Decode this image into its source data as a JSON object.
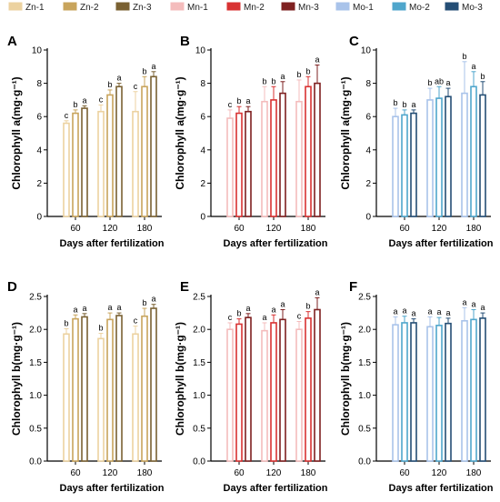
{
  "legend": {
    "items": [
      {
        "label": "Zn-1",
        "color": "#ecd2a0"
      },
      {
        "label": "Zn-2",
        "color": "#c8a45c"
      },
      {
        "label": "Zn-3",
        "color": "#7a6132"
      },
      {
        "label": "Mn-1",
        "color": "#f4bcbc"
      },
      {
        "label": "Mn-2",
        "color": "#d83232"
      },
      {
        "label": "Mn-3",
        "color": "#7e2020"
      },
      {
        "label": "Mo-1",
        "color": "#a9c3ea"
      },
      {
        "label": "Mo-2",
        "color": "#4fa6cc"
      },
      {
        "label": "Mo-3",
        "color": "#244e75"
      }
    ]
  },
  "chart_data": [
    {
      "panel": "A",
      "type": "bar",
      "categories": [
        "60",
        "120",
        "180"
      ],
      "xlabel": "Days after fertilization",
      "ylabel": "Chlorophyll a(mg·g⁻¹)",
      "ylim": [
        0,
        10
      ],
      "yticks": [
        "0",
        "2",
        "4",
        "6",
        "8",
        "10"
      ],
      "series": [
        {
          "name": "Zn-1",
          "color": "#ecd2a0",
          "values": [
            5.6,
            6.3,
            6.3
          ],
          "err": [
            0.15,
            0.4,
            1.2
          ],
          "letters": [
            "c",
            "c",
            "c"
          ]
        },
        {
          "name": "Zn-2",
          "color": "#c8a45c",
          "values": [
            6.2,
            7.3,
            7.8
          ],
          "err": [
            0.2,
            0.3,
            0.6
          ],
          "letters": [
            "b",
            "b",
            "b"
          ]
        },
        {
          "name": "Zn-3",
          "color": "#7a6132",
          "values": [
            6.5,
            7.8,
            8.4
          ],
          "err": [
            0.15,
            0.2,
            0.3
          ],
          "letters": [
            "a",
            "a",
            "a"
          ]
        }
      ]
    },
    {
      "panel": "B",
      "type": "bar",
      "categories": [
        "60",
        "120",
        "180"
      ],
      "xlabel": "Days after fertilization",
      "ylabel": "Chlorophyll a(mg·g⁻¹)",
      "ylim": [
        0,
        10
      ],
      "yticks": [
        "0",
        "2",
        "4",
        "6",
        "8",
        "10"
      ],
      "series": [
        {
          "name": "Mn-1",
          "color": "#f4bcbc",
          "values": [
            5.9,
            6.9,
            6.9
          ],
          "err": [
            0.5,
            0.9,
            1.3
          ],
          "letters": [
            "c",
            "b",
            "b"
          ]
        },
        {
          "name": "Mn-2",
          "color": "#d83232",
          "values": [
            6.2,
            7.0,
            7.8
          ],
          "err": [
            0.4,
            0.8,
            0.6
          ],
          "letters": [
            "b",
            "b",
            "b"
          ]
        },
        {
          "name": "Mn-3",
          "color": "#7e2020",
          "values": [
            6.3,
            7.4,
            8.0
          ],
          "err": [
            0.3,
            0.7,
            1.1
          ],
          "letters": [
            "a",
            "a",
            "a"
          ]
        }
      ]
    },
    {
      "panel": "C",
      "type": "bar",
      "categories": [
        "60",
        "120",
        "180"
      ],
      "xlabel": "Days after fertilization",
      "ylabel": "Chlorophyll a(mg·g⁻¹)",
      "ylim": [
        0,
        10
      ],
      "yticks": [
        "0",
        "2",
        "4",
        "6",
        "8",
        "10"
      ],
      "series": [
        {
          "name": "Mo-1",
          "color": "#a9c3ea",
          "values": [
            6.0,
            7.0,
            7.4
          ],
          "err": [
            0.5,
            0.7,
            1.9
          ],
          "letters": [
            "b",
            "b",
            "b"
          ]
        },
        {
          "name": "Mo-2",
          "color": "#4fa6cc",
          "values": [
            6.1,
            7.1,
            7.8
          ],
          "err": [
            0.3,
            0.7,
            0.9
          ],
          "letters": [
            "b",
            "ab",
            "a"
          ]
        },
        {
          "name": "Mo-3",
          "color": "#244e75",
          "values": [
            6.2,
            7.2,
            7.3
          ],
          "err": [
            0.2,
            0.5,
            0.8
          ],
          "letters": [
            "a",
            "a",
            "b"
          ]
        }
      ]
    },
    {
      "panel": "D",
      "type": "bar",
      "categories": [
        "60",
        "120",
        "180"
      ],
      "xlabel": "Days after fertilization",
      "ylabel": "Chlorophyll b(mg·g⁻¹)",
      "ylim": [
        0,
        2.5
      ],
      "yticks": [
        "0.0",
        "0.5",
        "1.0",
        "1.5",
        "2.0",
        "2.5"
      ],
      "series": [
        {
          "name": "Zn-1",
          "color": "#ecd2a0",
          "values": [
            1.93,
            1.86,
            1.93
          ],
          "err": [
            0.08,
            0.08,
            0.12
          ],
          "letters": [
            "b",
            "b",
            "c"
          ]
        },
        {
          "name": "Zn-2",
          "color": "#c8a45c",
          "values": [
            2.16,
            2.15,
            2.2
          ],
          "err": [
            0.06,
            0.1,
            0.12
          ],
          "letters": [
            "a",
            "a",
            "b"
          ]
        },
        {
          "name": "Zn-3",
          "color": "#7a6132",
          "values": [
            2.19,
            2.21,
            2.32
          ],
          "err": [
            0.05,
            0.04,
            0.06
          ],
          "letters": [
            "a",
            "a",
            "a"
          ]
        }
      ]
    },
    {
      "panel": "E",
      "type": "bar",
      "categories": [
        "60",
        "120",
        "180"
      ],
      "xlabel": "Days after fertilization",
      "ylabel": "Chlorophyll b(mg·g⁻¹)",
      "ylim": [
        0,
        2.5
      ],
      "yticks": [
        "0.0",
        "0.5",
        "1.0",
        "1.5",
        "2.0",
        "2.5"
      ],
      "series": [
        {
          "name": "Mn-1",
          "color": "#f4bcbc",
          "values": [
            2.0,
            1.98,
            2.0
          ],
          "err": [
            0.1,
            0.12,
            0.12
          ],
          "letters": [
            "c",
            "a",
            "c"
          ]
        },
        {
          "name": "Mn-2",
          "color": "#d83232",
          "values": [
            2.08,
            2.1,
            2.17
          ],
          "err": [
            0.08,
            0.12,
            0.1
          ],
          "letters": [
            "b",
            "a",
            "b"
          ]
        },
        {
          "name": "Mn-3",
          "color": "#7e2020",
          "values": [
            2.18,
            2.15,
            2.3
          ],
          "err": [
            0.06,
            0.15,
            0.18
          ],
          "letters": [
            "a",
            "a",
            "a"
          ]
        }
      ]
    },
    {
      "panel": "F",
      "type": "bar",
      "categories": [
        "60",
        "120",
        "180"
      ],
      "xlabel": "Days after fertilization",
      "ylabel": "Chlorophyll b(mg·g⁻¹)",
      "ylim": [
        0,
        2.5
      ],
      "yticks": [
        "0.0",
        "0.5",
        "1.0",
        "1.5",
        "2.0",
        "2.5"
      ],
      "series": [
        {
          "name": "Mo-1",
          "color": "#a9c3ea",
          "values": [
            2.07,
            2.04,
            2.13
          ],
          "err": [
            0.12,
            0.15,
            0.2
          ],
          "letters": [
            "a",
            "a",
            "a"
          ]
        },
        {
          "name": "Mo-2",
          "color": "#4fa6cc",
          "values": [
            2.1,
            2.06,
            2.15
          ],
          "err": [
            0.1,
            0.12,
            0.15
          ],
          "letters": [
            "a",
            "a",
            "a"
          ]
        },
        {
          "name": "Mo-3",
          "color": "#244e75",
          "values": [
            2.1,
            2.09,
            2.17
          ],
          "err": [
            0.06,
            0.08,
            0.08
          ],
          "letters": [
            "a",
            "a",
            "a"
          ]
        }
      ]
    }
  ]
}
